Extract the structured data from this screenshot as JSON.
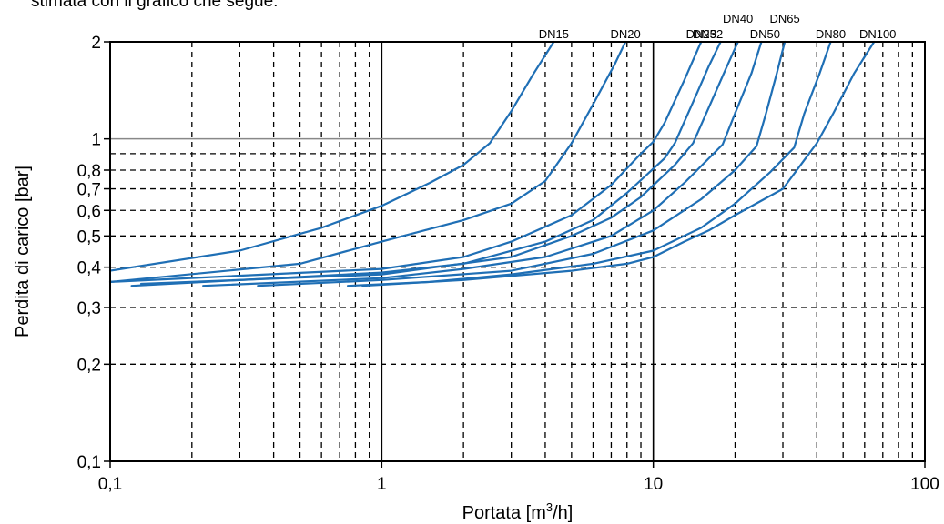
{
  "intro_text": "stimata con il grafico che segue:",
  "chart_data": {
    "type": "line",
    "xscale": "log",
    "yscale": "log",
    "xlim": [
      0.1,
      100
    ],
    "ylim": [
      0.1,
      2
    ],
    "xlabel_main": "Portata [m",
    "xlabel_sup": "3",
    "xlabel_end": "/h]",
    "ylabel": "Perdita di carico [bar]",
    "x_major_ticks": [
      {
        "value": 0.1,
        "label": "0,1"
      },
      {
        "value": 1,
        "label": "1"
      },
      {
        "value": 10,
        "label": "10"
      },
      {
        "value": 100,
        "label": "100"
      }
    ],
    "x_minor_gridlines": [
      0.2,
      0.3,
      0.4,
      0.5,
      0.6,
      0.7,
      0.8,
      0.9,
      2,
      3,
      4,
      5,
      6,
      7,
      8,
      9,
      20,
      30,
      40,
      50,
      60,
      70,
      80,
      90
    ],
    "y_ticks": [
      {
        "value": 0.1,
        "label": "0,1"
      },
      {
        "value": 0.2,
        "label": "0,2"
      },
      {
        "value": 0.3,
        "label": "0,3"
      },
      {
        "value": 0.4,
        "label": "0,4"
      },
      {
        "value": 0.5,
        "label": "0,5"
      },
      {
        "value": 0.6,
        "label": "0,6"
      },
      {
        "value": 0.7,
        "label": "0,7"
      },
      {
        "value": 0.8,
        "label": "0,8"
      },
      {
        "value": 1,
        "label": "1"
      },
      {
        "value": 2,
        "label": "2"
      }
    ],
    "y_dashed_gridlines": [
      0.2,
      0.3,
      0.4,
      0.5,
      0.6,
      0.7,
      0.8,
      0.9
    ],
    "y_solid_gridlines": [
      1
    ],
    "grid": true,
    "line_color": "#1f6fb5",
    "series": [
      {
        "name": "DN15",
        "points": [
          [
            0.1,
            0.39
          ],
          [
            0.3,
            0.45
          ],
          [
            0.6,
            0.53
          ],
          [
            1.0,
            0.62
          ],
          [
            1.5,
            0.73
          ],
          [
            2.0,
            0.83
          ],
          [
            2.5,
            0.97
          ],
          [
            3.0,
            1.22
          ],
          [
            3.6,
            1.58
          ],
          [
            4.3,
            2.0
          ]
        ]
      },
      {
        "name": "DN20",
        "points": [
          [
            0.1,
            0.36
          ],
          [
            0.5,
            0.41
          ],
          [
            1.0,
            0.48
          ],
          [
            2.0,
            0.56
          ],
          [
            3.0,
            0.63
          ],
          [
            4.0,
            0.74
          ],
          [
            5.0,
            0.97
          ],
          [
            6.0,
            1.28
          ],
          [
            7.2,
            1.7
          ],
          [
            7.9,
            2.0
          ]
        ]
      },
      {
        "name": "DN25",
        "points": [
          [
            0.1,
            0.36
          ],
          [
            1.0,
            0.395
          ],
          [
            2.0,
            0.43
          ],
          [
            3.0,
            0.48
          ],
          [
            5.0,
            0.58
          ],
          [
            7.0,
            0.72
          ],
          [
            9.0,
            0.9
          ],
          [
            10.0,
            0.98
          ],
          [
            11.0,
            1.12
          ],
          [
            13.0,
            1.52
          ],
          [
            15.0,
            2.0
          ]
        ]
      },
      {
        "name": "DN32",
        "points": [
          [
            0.12,
            0.35
          ],
          [
            1.0,
            0.385
          ],
          [
            2.0,
            0.41
          ],
          [
            4.0,
            0.48
          ],
          [
            6.0,
            0.56
          ],
          [
            8.0,
            0.68
          ],
          [
            11.0,
            0.87
          ],
          [
            12.0,
            0.97
          ],
          [
            14.0,
            1.3
          ],
          [
            16.0,
            1.68
          ],
          [
            17.7,
            2.0
          ]
        ]
      },
      {
        "name": "DN40",
        "points": [
          [
            0.13,
            0.355
          ],
          [
            1.0,
            0.38
          ],
          [
            3.0,
            0.43
          ],
          [
            5.0,
            0.5
          ],
          [
            7.0,
            0.57
          ],
          [
            9.0,
            0.66
          ],
          [
            12.0,
            0.83
          ],
          [
            14.0,
            0.97
          ],
          [
            16.0,
            1.25
          ],
          [
            18.5,
            1.65
          ],
          [
            20.5,
            2.0
          ]
        ]
      },
      {
        "name": "DN50",
        "points": [
          [
            0.22,
            0.35
          ],
          [
            1.0,
            0.37
          ],
          [
            2.0,
            0.395
          ],
          [
            4.0,
            0.43
          ],
          [
            7.0,
            0.5
          ],
          [
            10.0,
            0.6
          ],
          [
            13.0,
            0.73
          ],
          [
            16.0,
            0.87
          ],
          [
            18.0,
            0.96
          ],
          [
            20.0,
            1.2
          ],
          [
            23.0,
            1.6
          ],
          [
            25.0,
            2.0
          ]
        ]
      },
      {
        "name": "DN65",
        "points": [
          [
            0.35,
            0.35
          ],
          [
            1.0,
            0.365
          ],
          [
            3.0,
            0.39
          ],
          [
            6.0,
            0.44
          ],
          [
            10.0,
            0.52
          ],
          [
            15.0,
            0.65
          ],
          [
            20.0,
            0.8
          ],
          [
            24.0,
            0.95
          ],
          [
            26.0,
            1.2
          ],
          [
            28.5,
            1.6
          ],
          [
            30.5,
            2.0
          ]
        ]
      },
      {
        "name": "DN80",
        "points": [
          [
            0.75,
            0.35
          ],
          [
            1.5,
            0.36
          ],
          [
            3.0,
            0.38
          ],
          [
            6.0,
            0.41
          ],
          [
            10.0,
            0.45
          ],
          [
            15.0,
            0.53
          ],
          [
            20.0,
            0.63
          ],
          [
            27.0,
            0.79
          ],
          [
            33.0,
            0.94
          ],
          [
            36.0,
            1.2
          ],
          [
            41.0,
            1.6
          ],
          [
            45.0,
            2.0
          ]
        ]
      },
      {
        "name": "DN100",
        "points": [
          [
            0.85,
            0.35
          ],
          [
            2.0,
            0.365
          ],
          [
            5.0,
            0.39
          ],
          [
            8.0,
            0.41
          ],
          [
            10.0,
            0.43
          ],
          [
            13.0,
            0.48
          ],
          [
            16.0,
            0.52
          ],
          [
            20.0,
            0.58
          ],
          [
            30.0,
            0.7
          ],
          [
            40.0,
            0.97
          ],
          [
            46.0,
            1.2
          ],
          [
            55.0,
            1.6
          ],
          [
            65.0,
            2.0
          ]
        ]
      }
    ]
  }
}
